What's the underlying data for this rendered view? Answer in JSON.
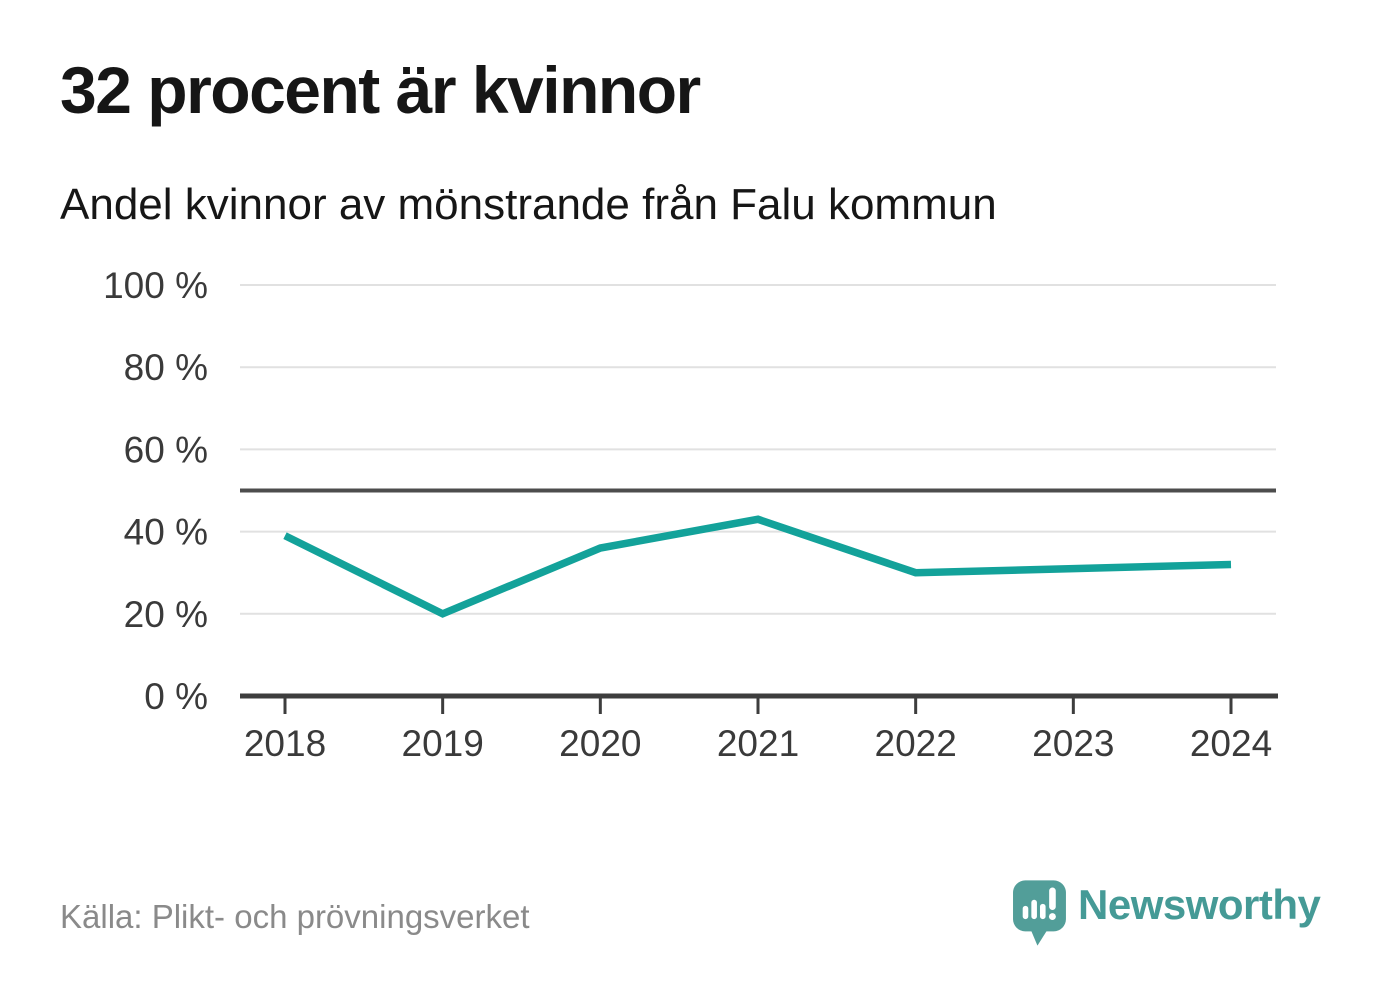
{
  "header": {
    "title": "32 procent är kvinnor",
    "subtitle": "Andel kvinnor av mönstrande från Falu kommun"
  },
  "chart_data": {
    "type": "line",
    "x": [
      2018,
      2019,
      2020,
      2021,
      2022,
      2023,
      2024
    ],
    "xtick_labels": [
      "2018",
      "2019",
      "2020",
      "2021",
      "2022",
      "2023",
      "2024"
    ],
    "series": [
      {
        "name": "Andel kvinnor av mönstrande",
        "values": [
          39,
          20,
          36,
          43,
          30,
          31,
          32
        ]
      }
    ],
    "unit": "%",
    "ylim": [
      0,
      100
    ],
    "yticks": [
      0,
      20,
      40,
      60,
      80,
      100
    ],
    "ytick_labels": [
      "0 %",
      "20 %",
      "40 %",
      "60 %",
      "80 %",
      "100 %"
    ],
    "reference_line": 50,
    "grid": true,
    "legend_position": "none",
    "title": "32 procent är kvinnor",
    "subtitle": "Andel kvinnor av mönstrande från Falu kommun",
    "xlabel": "",
    "ylabel": ""
  },
  "footer": {
    "source": "Källa: Plikt- och prövningsverket",
    "brand_name": "Newsworthy"
  },
  "colors": {
    "accent": "#13a29a",
    "brand": "#459a96",
    "logo_bg": "#529e99",
    "text": "#161616",
    "axis_text": "#3a3a3a",
    "grid": "#e1e1e1",
    "reference": "#4d4d4d",
    "axis": "#3d3d3d",
    "source_text": "#8a8a8a"
  }
}
